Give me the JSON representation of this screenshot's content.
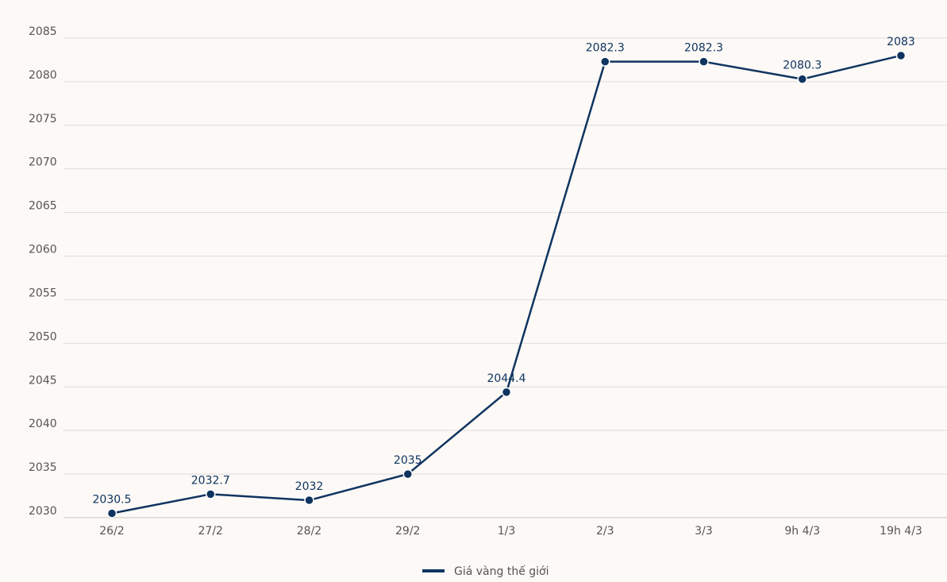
{
  "chart_data": {
    "type": "line",
    "title": "",
    "xlabel": "",
    "ylabel": "",
    "categories": [
      "26/2",
      "27/2",
      "28/2",
      "29/2",
      "1/3",
      "2/3",
      "3/3",
      "9h 4/3",
      "19h 4/3"
    ],
    "series": [
      {
        "name": "Giá vàng thế giới",
        "color": "#0f3460",
        "values": [
          2030.5,
          2032.7,
          2032,
          2035,
          2044.4,
          2082.3,
          2082.3,
          2080.3,
          2083
        ],
        "labels": [
          "2030.5",
          "2032.7",
          "2032",
          "2035",
          "2044.4",
          "2082.3",
          "2082.3",
          "2080.3",
          "2083"
        ]
      }
    ],
    "ylim": [
      2030,
      2085
    ],
    "yticks": [
      2030,
      2035,
      2040,
      2045,
      2050,
      2055,
      2060,
      2065,
      2070,
      2075,
      2080,
      2085
    ],
    "grid": true,
    "legend_position": "bottom-center"
  },
  "colors": {
    "background": "#fdf9f6",
    "grid": "#dcdcdc",
    "tick_text": "#555555",
    "series": "#0f3460"
  }
}
